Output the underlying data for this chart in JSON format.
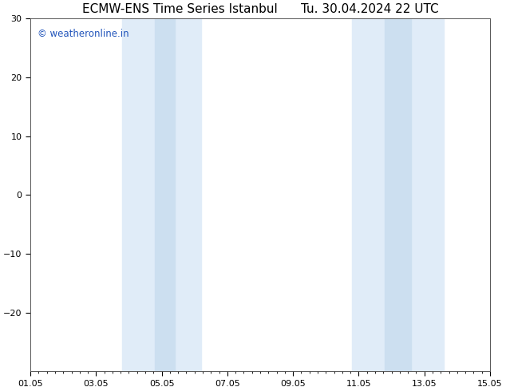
{
  "title_left": "ECMW-ENS Time Series Istanbul",
  "title_right": "Tu. 30.04.2024 22 UTC",
  "title_fontsize": 11,
  "watermark": "© weatheronline.in",
  "watermark_color": "#2255bb",
  "watermark_fontsize": 8.5,
  "ylim": [
    -30,
    30
  ],
  "yticks": [
    -20,
    -10,
    0,
    10,
    20,
    30
  ],
  "xlim_start": 0,
  "xlim_end": 14,
  "xtick_labels": [
    "01.05",
    "03.05",
    "05.05",
    "07.05",
    "09.05",
    "11.05",
    "13.05",
    "15.05"
  ],
  "xtick_positions": [
    0,
    2,
    4,
    6,
    8,
    10,
    12,
    14
  ],
  "shade_bands_light": [
    {
      "x_start": 2.8,
      "x_end": 5.2
    },
    {
      "x_start": 9.8,
      "x_end": 12.6
    }
  ],
  "shade_bands_dark": [
    {
      "x_start": 3.8,
      "x_end": 4.4
    },
    {
      "x_start": 10.8,
      "x_end": 11.6
    }
  ],
  "shade_color_light": "#e0ecf8",
  "shade_color_dark": "#ccdff0",
  "background_color": "#ffffff",
  "axes_edge_color": "#555555",
  "tick_color": "#000000"
}
